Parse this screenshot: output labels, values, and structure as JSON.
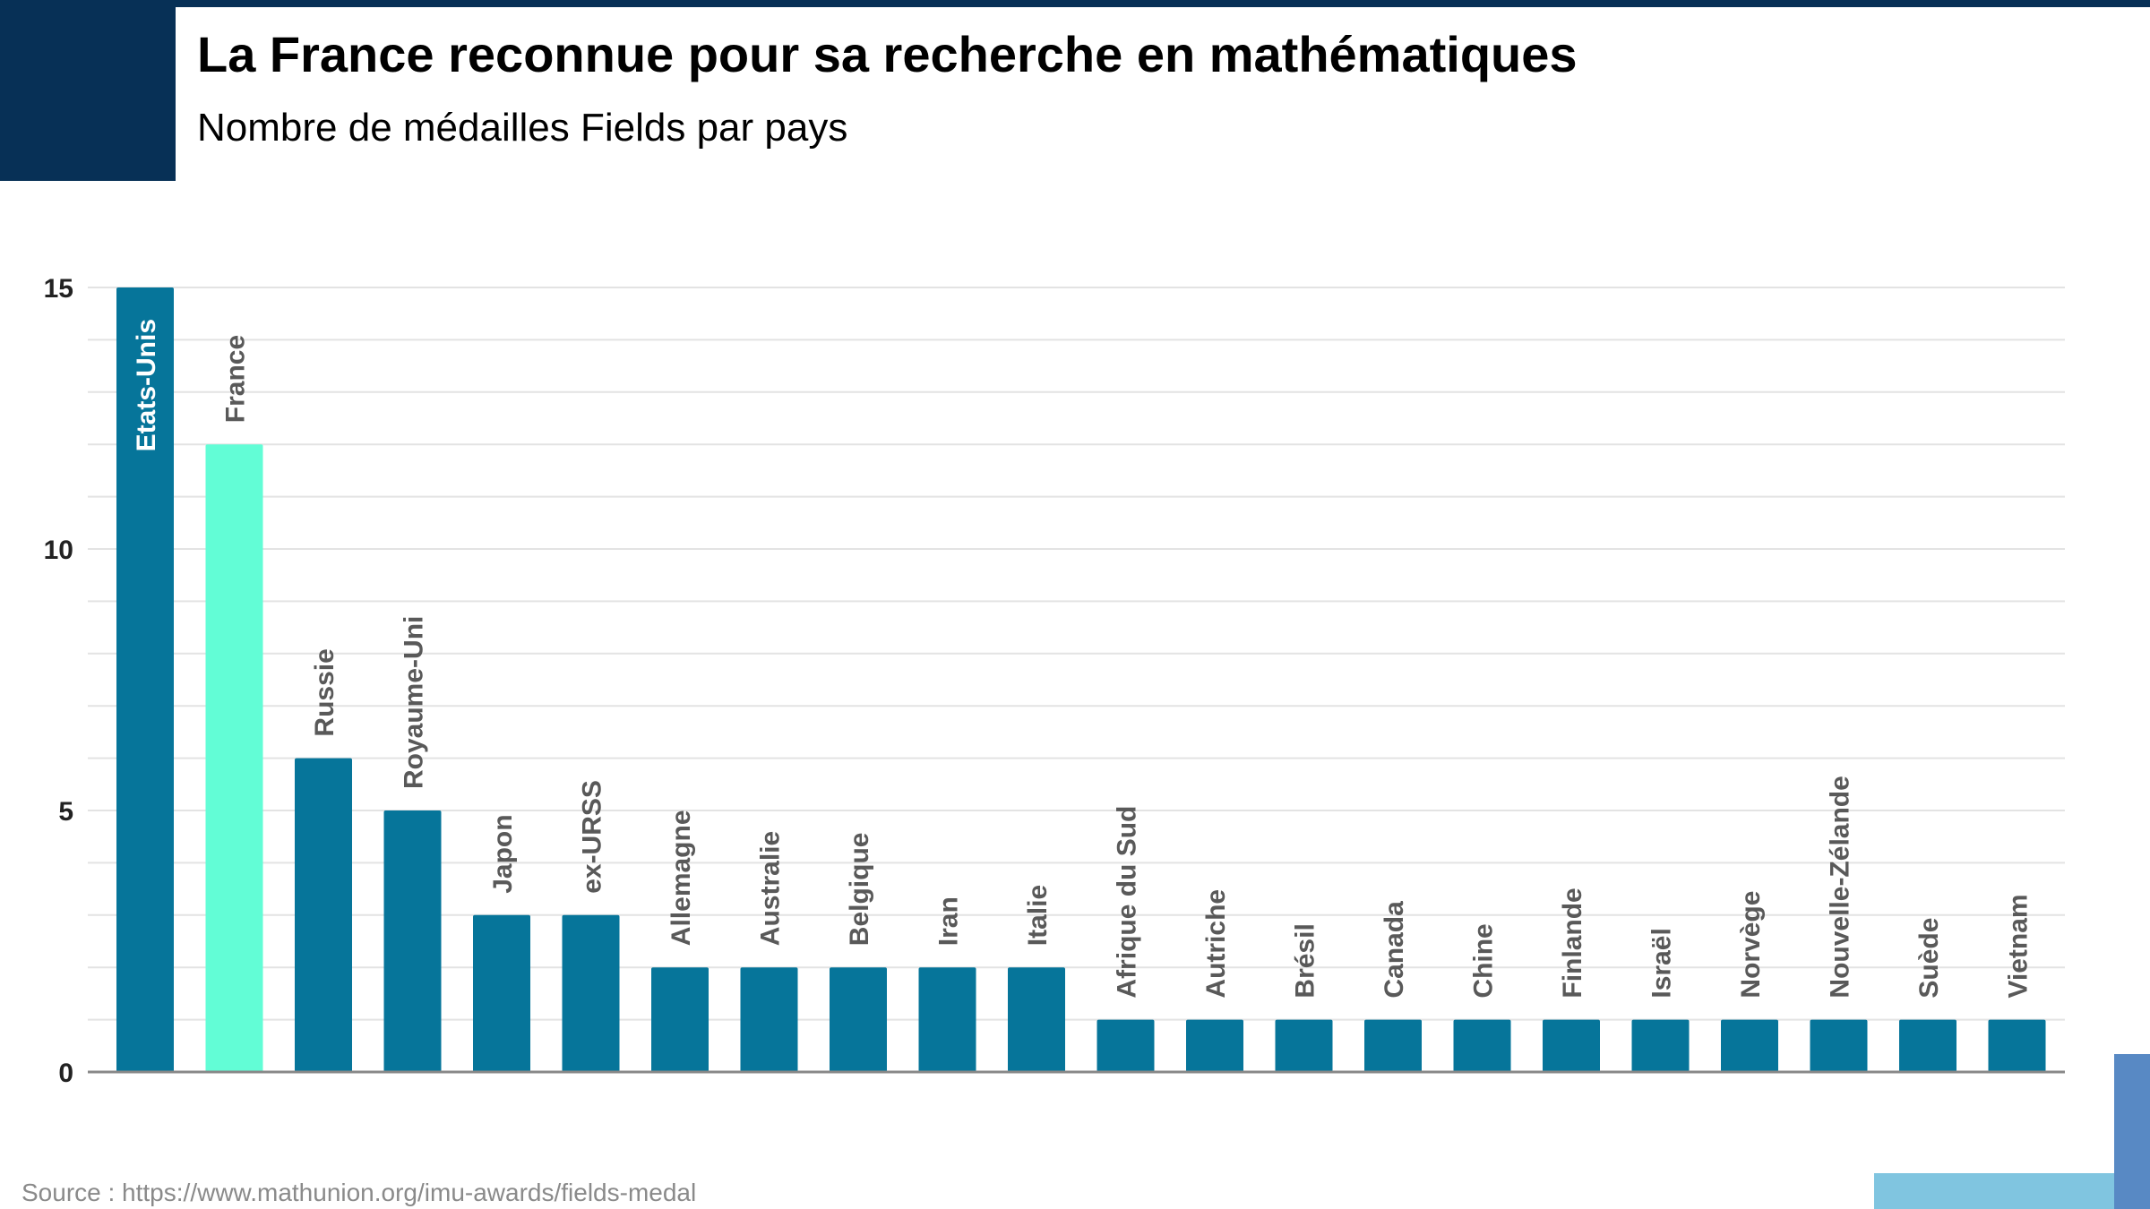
{
  "header": {
    "title": "La France reconnue pour sa recherche en mathématiques",
    "subtitle": "Nombre de médailles Fields par pays"
  },
  "source": "Source : https://www.mathunion.org/imu-awards/fields-medal",
  "colors": {
    "bar": "#06759a",
    "highlight": "#62fdd6",
    "brand": "#073056",
    "label": "#595959"
  },
  "chart_data": {
    "type": "bar",
    "title": "La France reconnue pour sa recherche en mathématiques",
    "subtitle": "Nombre de médailles Fields par pays",
    "xlabel": "",
    "ylabel": "",
    "ylim": [
      0,
      15
    ],
    "yticks": [
      0,
      5,
      10,
      15
    ],
    "grid": true,
    "highlight": "France",
    "categories": [
      "Etats-Unis",
      "France",
      "Russie",
      "Royaume-Uni",
      "Japon",
      "ex-URSS",
      "Allemagne",
      "Australie",
      "Belgique",
      "Iran",
      "Italie",
      "Afrique du Sud",
      "Autriche",
      "Brésil",
      "Canada",
      "Chine",
      "Finlande",
      "Israël",
      "Norvège",
      "Nouvelle-Zélande",
      "Suède",
      "Vietnam"
    ],
    "values": [
      15,
      12,
      6,
      5,
      3,
      3,
      2,
      2,
      2,
      2,
      2,
      1,
      1,
      1,
      1,
      1,
      1,
      1,
      1,
      1,
      1,
      1
    ]
  }
}
